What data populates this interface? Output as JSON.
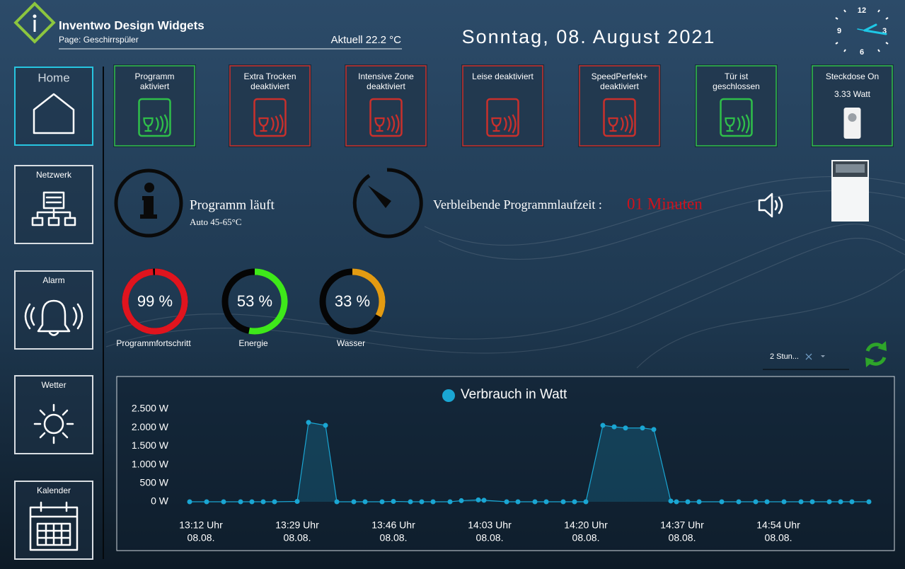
{
  "header": {
    "title": "Inventwo Design Widgets",
    "page": "Page: Geschirrspüler",
    "temperature": "Aktuell 22.2 °C",
    "date": "Sonntag, 08. August 2021"
  },
  "clock": {
    "labels": [
      "12",
      "3",
      "6",
      "9"
    ]
  },
  "nav": [
    "Home",
    "Netzwerk",
    "Alarm",
    "Wetter",
    "Kalender"
  ],
  "tiles": [
    {
      "lines": [
        "Programm",
        "aktiviert"
      ],
      "color": "#2fbf4a"
    },
    {
      "lines": [
        "Extra Trocken",
        "deaktiviert"
      ],
      "color": "#c9302c"
    },
    {
      "lines": [
        "Intensive Zone",
        "deaktiviert"
      ],
      "color": "#c9302c"
    },
    {
      "lines": [
        "Leise deaktiviert"
      ],
      "color": "#c9302c"
    },
    {
      "lines": [
        "SpeedPerfekt+",
        "deaktiviert"
      ],
      "color": "#c9302c"
    },
    {
      "lines": [
        "Tür ist",
        "geschlossen"
      ],
      "color": "#2fbf4a"
    },
    {
      "lines": [
        "Steckdose On"
      ],
      "value": "3.33 Watt",
      "color": "#2fbf4a"
    }
  ],
  "status": {
    "program": "Programm läuft",
    "mode": "Auto 45-65°C",
    "remaining_label": "Verbleibende Programmlaufzeit :",
    "remaining": "01 Minuten"
  },
  "gauges": {
    "names": [
      "Programmfortschritt",
      "Energie",
      "Wasser"
    ],
    "values": [
      99,
      53,
      33
    ],
    "value_labels": [
      "99 %",
      "53 %",
      "33 %"
    ],
    "colors": [
      "#e0141e",
      "#3ee81a",
      "#e39b12"
    ],
    "range": [
      0,
      100
    ]
  },
  "dropdown": "2 Stun...",
  "chart_data": {
    "type": "line",
    "series": [
      {
        "name": "Verbrauch in Watt",
        "color": "#1aa6d3",
        "values": [
          0,
          0,
          0,
          0,
          0,
          0,
          0,
          10,
          2140,
          2060,
          0,
          0,
          0,
          0,
          10,
          0,
          0,
          0,
          0,
          30,
          50,
          40,
          0,
          0,
          0,
          0,
          0,
          0,
          0,
          2060,
          2020,
          1990,
          1990,
          1950,
          20,
          0,
          0,
          0,
          0,
          0,
          0,
          0,
          0,
          0,
          0,
          0,
          0,
          0,
          0
        ]
      }
    ],
    "x": [
      "13:10",
      "13:13",
      "13:16",
      "13:19",
      "13:21",
      "13:23",
      "13:25",
      "13:29",
      "13:31",
      "13:34",
      "13:36",
      "13:39",
      "13:41",
      "13:44",
      "13:46",
      "13:49",
      "13:51",
      "13:53",
      "13:56",
      "13:58",
      "14:01",
      "14:02",
      "14:06",
      "14:08",
      "14:11",
      "14:13",
      "14:16",
      "14:18",
      "14:20",
      "14:23",
      "14:25",
      "14:27",
      "14:30",
      "14:32",
      "14:35",
      "14:36",
      "14:38",
      "14:40",
      "14:44",
      "14:47",
      "14:50",
      "14:52",
      "14:55",
      "14:58",
      "15:00",
      "15:03",
      "15:05",
      "15:07",
      "15:10"
    ],
    "xlim": [
      "13:10",
      "15:10"
    ],
    "xticks": [
      {
        "value": "13:12",
        "label": "13:12 Uhr",
        "date": "08.08."
      },
      {
        "value": "13:29",
        "label": "13:29 Uhr",
        "date": "08.08."
      },
      {
        "value": "13:46",
        "label": "13:46 Uhr",
        "date": "08.08."
      },
      {
        "value": "14:03",
        "label": "14:03 Uhr",
        "date": "08.08."
      },
      {
        "value": "14:20",
        "label": "14:20 Uhr",
        "date": "08.08."
      },
      {
        "value": "14:37",
        "label": "14:37 Uhr",
        "date": "08.08."
      },
      {
        "value": "14:54",
        "label": "14:54 Uhr",
        "date": "08.08."
      }
    ],
    "ylim": [
      0,
      2500
    ],
    "yticks": [
      {
        "value": 0,
        "label": "0 W"
      },
      {
        "value": 500,
        "label": "500 W"
      },
      {
        "value": 1000,
        "label": "1.000 W"
      },
      {
        "value": 1500,
        "label": "1.500 W"
      },
      {
        "value": 2000,
        "label": "2.000 W"
      },
      {
        "value": 2500,
        "label": "2.500 W"
      }
    ]
  }
}
